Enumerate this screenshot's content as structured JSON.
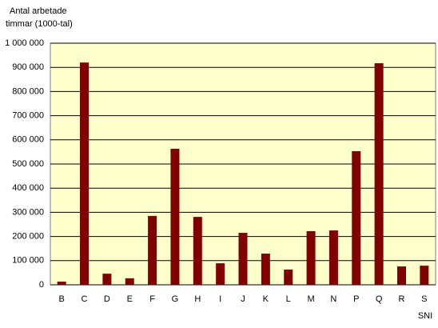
{
  "chart_data": {
    "type": "bar",
    "ylabel_lines": [
      "Antal arbetade",
      "timmar (1000-tal)"
    ],
    "xlabel": "SNI",
    "categories": [
      "B",
      "C",
      "D",
      "E",
      "F",
      "G",
      "H",
      "I",
      "J",
      "K",
      "L",
      "M",
      "N",
      "P",
      "Q",
      "R",
      "S"
    ],
    "values": [
      13000,
      920000,
      46000,
      27000,
      285000,
      563000,
      281000,
      89000,
      215000,
      129000,
      63000,
      222000,
      225000,
      553000,
      917000,
      76000,
      79000
    ],
    "color": "#800000",
    "ylim": [
      0,
      1000000
    ],
    "yticks": [
      0,
      {
        "value": 100000,
        "label": "100 000"
      },
      {
        "value": 200000,
        "label": "200 000"
      },
      {
        "value": 300000,
        "label": "300 000"
      },
      {
        "value": 400000,
        "label": "400 000"
      },
      {
        "value": 500000,
        "label": "500 000"
      },
      {
        "value": 600000,
        "label": "600 000"
      },
      {
        "value": 700000,
        "label": "700 000"
      },
      {
        "value": 800000,
        "label": "800 000"
      },
      {
        "value": 900000,
        "label": "900 000"
      },
      {
        "value": 1000000,
        "label": "1 000 000"
      }
    ],
    "grid": true
  }
}
